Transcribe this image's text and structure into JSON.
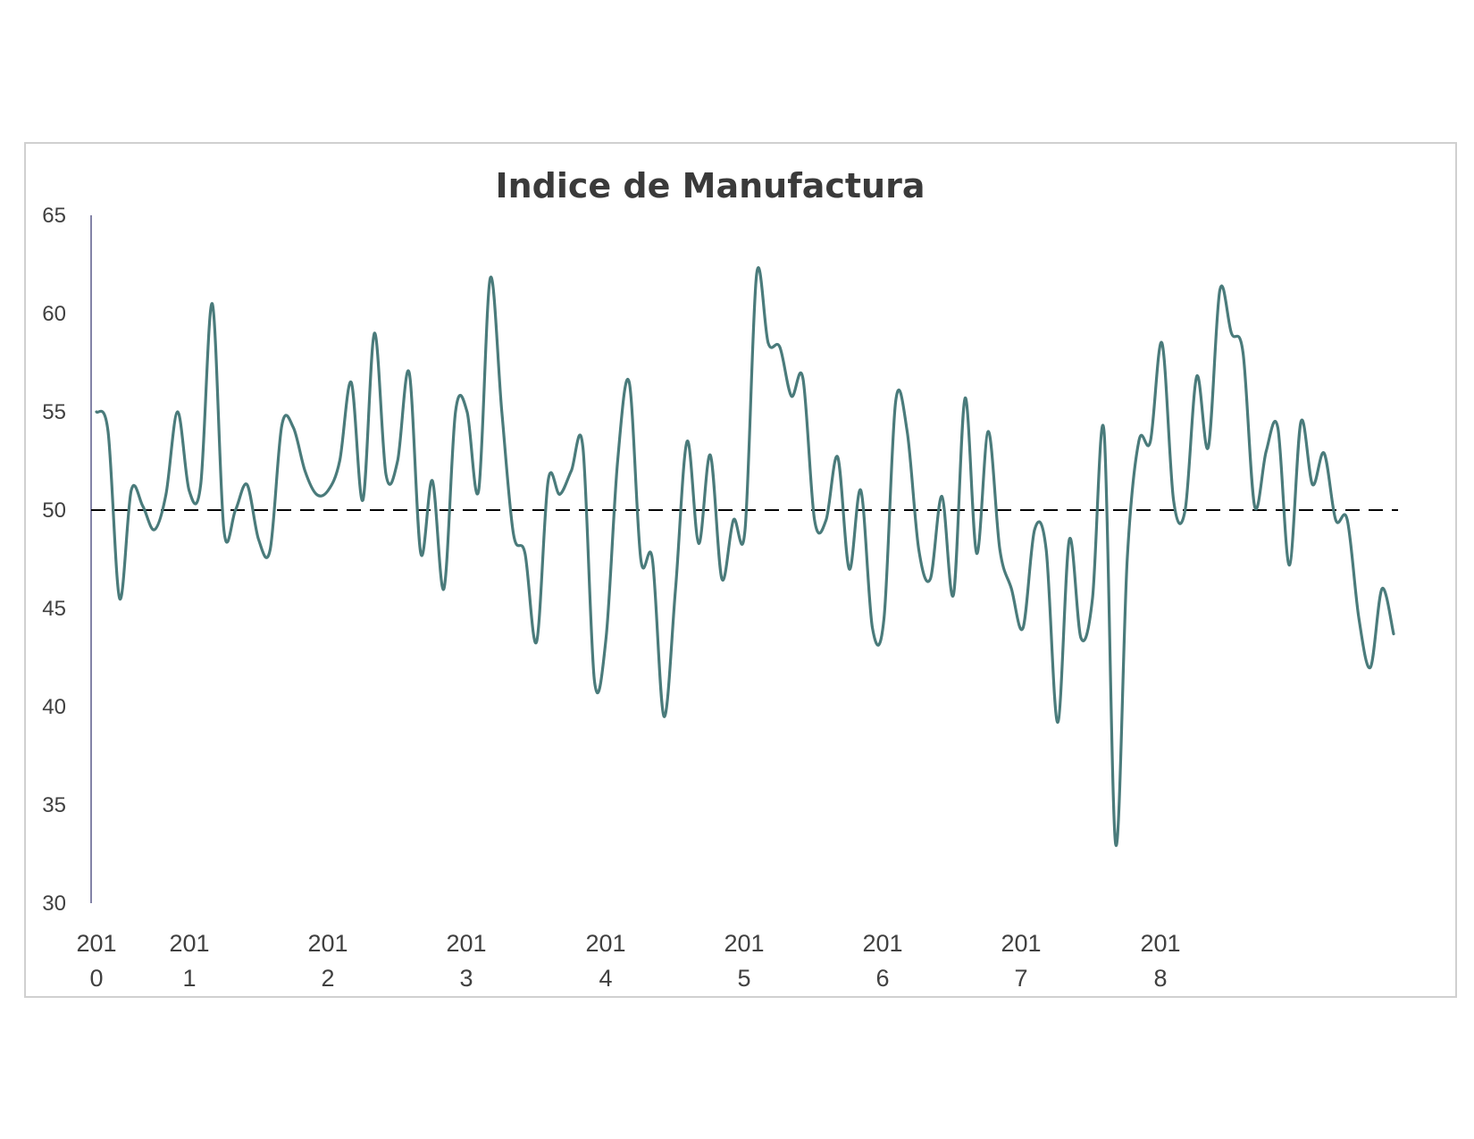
{
  "chart_data": {
    "type": "line",
    "title": "Indice de Manufactura",
    "xlabel": "",
    "ylabel": "",
    "ylim": [
      30,
      65
    ],
    "yticks": [
      30,
      35,
      40,
      45,
      50,
      55,
      60,
      65
    ],
    "xticks": [
      {
        "label": "2010",
        "line1": "201",
        "line2": "0"
      },
      {
        "label": "2011",
        "line1": "201",
        "line2": "1"
      },
      {
        "label": "2012",
        "line1": "201",
        "line2": "2"
      },
      {
        "label": "2013",
        "line1": "201",
        "line2": "3"
      },
      {
        "label": "2014",
        "line1": "201",
        "line2": "4"
      },
      {
        "label": "2015",
        "line1": "201",
        "line2": "5"
      },
      {
        "label": "2016",
        "line1": "201",
        "line2": "6"
      },
      {
        "label": "2017",
        "line1": "201",
        "line2": "7"
      },
      {
        "label": "2018",
        "line1": "201",
        "line2": "8"
      }
    ],
    "reference_line": {
      "y": 50,
      "style": "dashed",
      "color": "#000000"
    },
    "grid": false,
    "series": [
      {
        "color": "#4a7b7b",
        "values": [
          55.0,
          54.0,
          45.5,
          51.0,
          50.2,
          49.0,
          50.8,
          55.0,
          51.0,
          51.3,
          60.5,
          49.0,
          50.0,
          51.3,
          48.5,
          48.0,
          54.3,
          54.2,
          52.0,
          50.8,
          51.0,
          52.5,
          56.5,
          50.5,
          59.0,
          51.8,
          52.5,
          57.0,
          47.8,
          51.5,
          46.0,
          55.0,
          55.0,
          51.0,
          61.8,
          55.0,
          48.8,
          47.8,
          43.3,
          51.5,
          50.8,
          52.0,
          53.2,
          41.3,
          43.5,
          52.5,
          56.5,
          47.5,
          47.5,
          39.5,
          46.0,
          53.5,
          48.3,
          52.8,
          46.5,
          49.5,
          49.0,
          62.0,
          58.5,
          58.3,
          55.8,
          56.7,
          49.5,
          49.5,
          52.7,
          47.0,
          51.0,
          44.0,
          44.5,
          55.5,
          54.0,
          48.0,
          46.5,
          50.7,
          45.7,
          55.7,
          47.8,
          54.0,
          48.0,
          46.0,
          44.0,
          49.0,
          48.0,
          39.2,
          48.5,
          43.5,
          45.5,
          54.0,
          33.0,
          47.5,
          53.5,
          53.5,
          58.5,
          50.5,
          50.0,
          56.8,
          53.2,
          61.2,
          59.0,
          58.0,
          50.2,
          53.0,
          54.2,
          47.2,
          54.5,
          51.3,
          52.9,
          49.5,
          49.5,
          44.5,
          42.0,
          46.0,
          43.7
        ]
      }
    ]
  }
}
